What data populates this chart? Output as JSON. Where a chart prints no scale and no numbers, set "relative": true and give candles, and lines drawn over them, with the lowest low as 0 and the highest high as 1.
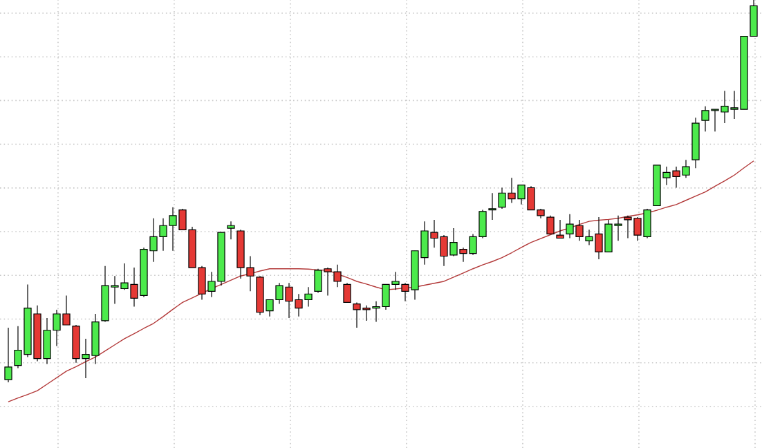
{
  "chart_data": {
    "type": "candlestick",
    "relative": true,
    "grid": true,
    "categories": [
      null,
      null,
      null,
      null,
      null,
      null,
      null,
      null,
      null,
      null,
      null,
      null,
      null,
      null,
      null,
      null,
      null,
      null,
      null,
      null,
      null,
      null,
      null,
      null,
      null,
      null,
      null,
      null,
      null,
      null,
      null,
      null,
      null,
      null,
      null,
      null,
      null,
      null,
      null,
      null,
      null,
      null,
      null,
      null,
      null,
      null,
      null,
      null,
      null,
      null,
      null,
      null,
      null,
      null,
      null,
      null,
      null,
      null,
      null,
      null,
      null,
      null,
      null,
      null,
      null,
      null,
      null,
      null,
      null,
      null,
      null,
      null,
      null,
      null,
      null,
      null,
      null,
      null
    ],
    "ohlc": [
      [
        0.007,
        0.143,
        0,
        0.04
      ],
      [
        0.044,
        0.147,
        0.037,
        0.084
      ],
      [
        0.073,
        0.256,
        0.066,
        0.194
      ],
      [
        0.179,
        0.201,
        0.055,
        0.062
      ],
      [
        0.062,
        0.168,
        0.048,
        0.136
      ],
      [
        0.136,
        0.19,
        0.095,
        0.179
      ],
      [
        0.179,
        0.227,
        0.15,
        0.15
      ],
      [
        0.147,
        0.15,
        0.051,
        0.062
      ],
      [
        0.062,
        0.114,
        0.011,
        0.073
      ],
      [
        0.07,
        0.179,
        0.048,
        0.158
      ],
      [
        0.161,
        0.304,
        0.158,
        0.253
      ],
      [
        0.249,
        0.278,
        0.205,
        0.253
      ],
      [
        0.245,
        0.311,
        0.242,
        0.26
      ],
      [
        0.256,
        0.3,
        0.198,
        0.22
      ],
      [
        0.227,
        0.352,
        0.223,
        0.348
      ],
      [
        0.344,
        0.429,
        0.315,
        0.381
      ],
      [
        0.381,
        0.429,
        0.344,
        0.41
      ],
      [
        0.41,
        0.458,
        0.344,
        0.436
      ],
      [
        0.451,
        0.454,
        0.399,
        0.399
      ],
      [
        0.399,
        0.407,
        0.3,
        0.3
      ],
      [
        0.3,
        0.304,
        0.216,
        0.231
      ],
      [
        0.238,
        0.289,
        0.223,
        0.264
      ],
      [
        0.264,
        0.392,
        0.253,
        0.392
      ],
      [
        0.403,
        0.421,
        0.374,
        0.41
      ],
      [
        0.396,
        0.399,
        0.271,
        0.3
      ],
      [
        0.3,
        0.33,
        0.238,
        0.278
      ],
      [
        0.275,
        0.278,
        0.176,
        0.183
      ],
      [
        0.187,
        0.216,
        0.172,
        0.216
      ],
      [
        0.216,
        0.26,
        0.205,
        0.253
      ],
      [
        0.249,
        0.26,
        0.168,
        0.212
      ],
      [
        0.216,
        0.231,
        0.172,
        0.194
      ],
      [
        0.216,
        0.249,
        0.198,
        0.231
      ],
      [
        0.238,
        0.297,
        0.234,
        0.293
      ],
      [
        0.297,
        0.3,
        0.227,
        0.289
      ],
      [
        0.289,
        0.308,
        0.249,
        0.264
      ],
      [
        0.256,
        0.26,
        0.209,
        0.209
      ],
      [
        0.205,
        0.209,
        0.143,
        0.19
      ],
      [
        0.194,
        0.201,
        0.161,
        0.19
      ],
      [
        0.194,
        0.212,
        0.158,
        0.198
      ],
      [
        0.198,
        0.256,
        0.19,
        0.256
      ],
      [
        0.256,
        0.289,
        0.242,
        0.264
      ],
      [
        0.256,
        0.26,
        0.212,
        0.238
      ],
      [
        0.242,
        0.344,
        0.216,
        0.344
      ],
      [
        0.326,
        0.421,
        0.308,
        0.396
      ],
      [
        0.392,
        0.425,
        0.352,
        0.377
      ],
      [
        0.381,
        0.385,
        0.304,
        0.33
      ],
      [
        0.333,
        0.403,
        0.33,
        0.366
      ],
      [
        0.348,
        0.352,
        0.315,
        0.337
      ],
      [
        0.337,
        0.388,
        0.333,
        0.381
      ],
      [
        0.381,
        0.451,
        0.377,
        0.447
      ],
      [
        0.451,
        0.495,
        0.425,
        0.454
      ],
      [
        0.458,
        0.509,
        0.454,
        0.495
      ],
      [
        0.495,
        0.535,
        0.469,
        0.48
      ],
      [
        0.48,
        0.516,
        0.465,
        0.516
      ],
      [
        0.509,
        0.513,
        0.451,
        0.451
      ],
      [
        0.451,
        0.454,
        0.429,
        0.436
      ],
      [
        0.432,
        0.436,
        0.388,
        0.388
      ],
      [
        0.385,
        0.425,
        0.377,
        0.377
      ],
      [
        0.388,
        0.44,
        0.377,
        0.414
      ],
      [
        0.41,
        0.425,
        0.37,
        0.381
      ],
      [
        0.37,
        0.399,
        0.359,
        0.381
      ],
      [
        0.388,
        0.432,
        0.322,
        0.341
      ],
      [
        0.341,
        0.425,
        0.341,
        0.414
      ],
      [
        0.41,
        0.436,
        0.37,
        0.414
      ],
      [
        0.432,
        0.436,
        0.377,
        0.425
      ],
      [
        0.429,
        0.432,
        0.37,
        0.385
      ],
      [
        0.381,
        0.454,
        0.377,
        0.451
      ],
      [
        0.462,
        0.568,
        0.462,
        0.568
      ],
      [
        0.535,
        0.564,
        0.516,
        0.549
      ],
      [
        0.553,
        0.564,
        0.509,
        0.538
      ],
      [
        0.542,
        0.582,
        0.535,
        0.564
      ],
      [
        0.582,
        0.692,
        0.56,
        0.678
      ],
      [
        0.685,
        0.722,
        0.656,
        0.711
      ],
      [
        0.711,
        0.714,
        0.656,
        0.714
      ],
      [
        0.707,
        0.762,
        0.678,
        0.722
      ],
      [
        0.714,
        0.762,
        0.689,
        0.718
      ],
      [
        0.714,
        0.905,
        0.714,
        0.905
      ],
      [
        0.905,
        1,
        0.905,
        0.985
      ]
    ],
    "colors": [
      "#4cea4c",
      "#4cea4c",
      "#4cea4c",
      "#e53935",
      "#4cea4c",
      "#4cea4c",
      "#e53935",
      "#e53935",
      "#4cea4c",
      "#4cea4c",
      "#4cea4c",
      "#4cea4c",
      "#4cea4c",
      "#e53935",
      "#4cea4c",
      "#4cea4c",
      "#4cea4c",
      "#4cea4c",
      "#e53935",
      "#e53935",
      "#e53935",
      "#4cea4c",
      "#4cea4c",
      "#4cea4c",
      "#e53935",
      "#e53935",
      "#e53935",
      "#4cea4c",
      "#4cea4c",
      "#e53935",
      "#e53935",
      "#4cea4c",
      "#4cea4c",
      "#e53935",
      "#e53935",
      "#e53935",
      "#e53935",
      "#e53935",
      "#4cea4c",
      "#4cea4c",
      "#4cea4c",
      "#e53935",
      "#4cea4c",
      "#4cea4c",
      "#e53935",
      "#e53935",
      "#4cea4c",
      "#e53935",
      "#4cea4c",
      "#4cea4c",
      "#4cea4c",
      "#4cea4c",
      "#e53935",
      "#4cea4c",
      "#e53935",
      "#e53935",
      "#e53935",
      "#e53935",
      "#4cea4c",
      "#e53935",
      "#4cea4c",
      "#e53935",
      "#4cea4c",
      "#4cea4c",
      "#e53935",
      "#e53935",
      "#4cea4c",
      "#4cea4c",
      "#4cea4c",
      "#e53935",
      "#4cea4c",
      "#4cea4c",
      "#4cea4c",
      "#4cea4c",
      "#4cea4c",
      "#4cea4c",
      "#4cea4c",
      "#4cea4c"
    ],
    "series": [
      {
        "type": "line",
        "color": "#b33a3a",
        "values": [
          -0.051,
          -0.041,
          -0.032,
          -0.022,
          -0.005,
          0.012,
          0.029,
          0.041,
          0.054,
          0.066,
          0.082,
          0.098,
          0.114,
          0.127,
          0.141,
          0.154,
          0.172,
          0.191,
          0.209,
          0.221,
          0.233,
          0.245,
          0.256,
          0.267,
          0.278,
          0.284,
          0.291,
          0.297,
          0.297,
          0.297,
          0.297,
          0.296,
          0.294,
          0.293,
          0.283,
          0.274,
          0.264,
          0.257,
          0.249,
          0.242,
          0.244,
          0.247,
          0.249,
          0.254,
          0.259,
          0.264,
          0.275,
          0.286,
          0.297,
          0.307,
          0.316,
          0.326,
          0.339,
          0.353,
          0.366,
          0.376,
          0.386,
          0.396,
          0.404,
          0.413,
          0.421,
          0.424,
          0.426,
          0.429,
          0.434,
          0.438,
          0.443,
          0.45,
          0.458,
          0.465,
          0.476,
          0.487,
          0.498,
          0.513,
          0.527,
          0.542,
          0.561,
          0.579
        ]
      }
    ]
  }
}
